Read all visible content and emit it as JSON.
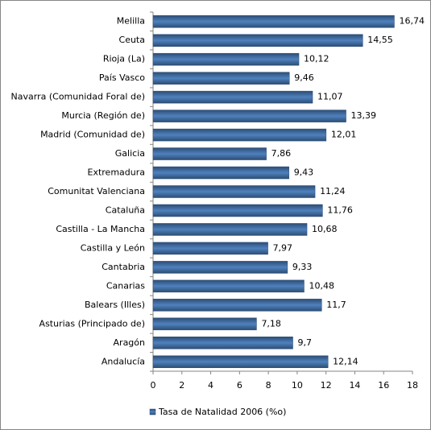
{
  "chart_data": {
    "type": "bar",
    "orientation": "horizontal",
    "categories": [
      "Melilla",
      "Ceuta",
      "Rioja (La)",
      "País Vasco",
      "Navarra (Comunidad Foral de)",
      "Murcia (Región de)",
      "Madrid (Comunidad de)",
      "Galicia",
      "Extremadura",
      "Comunitat Valenciana",
      "Cataluña",
      "Castilla - La Mancha",
      "Castilla y León",
      "Cantabria",
      "Canarias",
      "Balears (Illes)",
      "Asturias (Principado de)",
      "Aragón",
      "Andalucía"
    ],
    "series": [
      {
        "name": "Tasa de Natalidad  2006 (%o)",
        "color": "#4f81bd",
        "values": [
          16.74,
          14.55,
          10.12,
          9.46,
          11.07,
          13.39,
          12.01,
          7.86,
          9.43,
          11.24,
          11.76,
          10.68,
          7.97,
          9.33,
          10.48,
          11.7,
          7.18,
          9.7,
          12.14
        ],
        "value_labels": [
          "16,74",
          "14,55",
          "10,12",
          "9,46",
          "11,07",
          "13,39",
          "12,01",
          "7,86",
          "9,43",
          "11,24",
          "11,76",
          "10,68",
          "7,97",
          "9,33",
          "10,48",
          "11,7",
          "7,18",
          "9,7",
          "12,14"
        ]
      }
    ],
    "xlim": [
      0,
      18
    ],
    "xticks": [
      0,
      2,
      4,
      6,
      8,
      10,
      12,
      14,
      16,
      18
    ],
    "grid": false,
    "legend": "bottom"
  }
}
